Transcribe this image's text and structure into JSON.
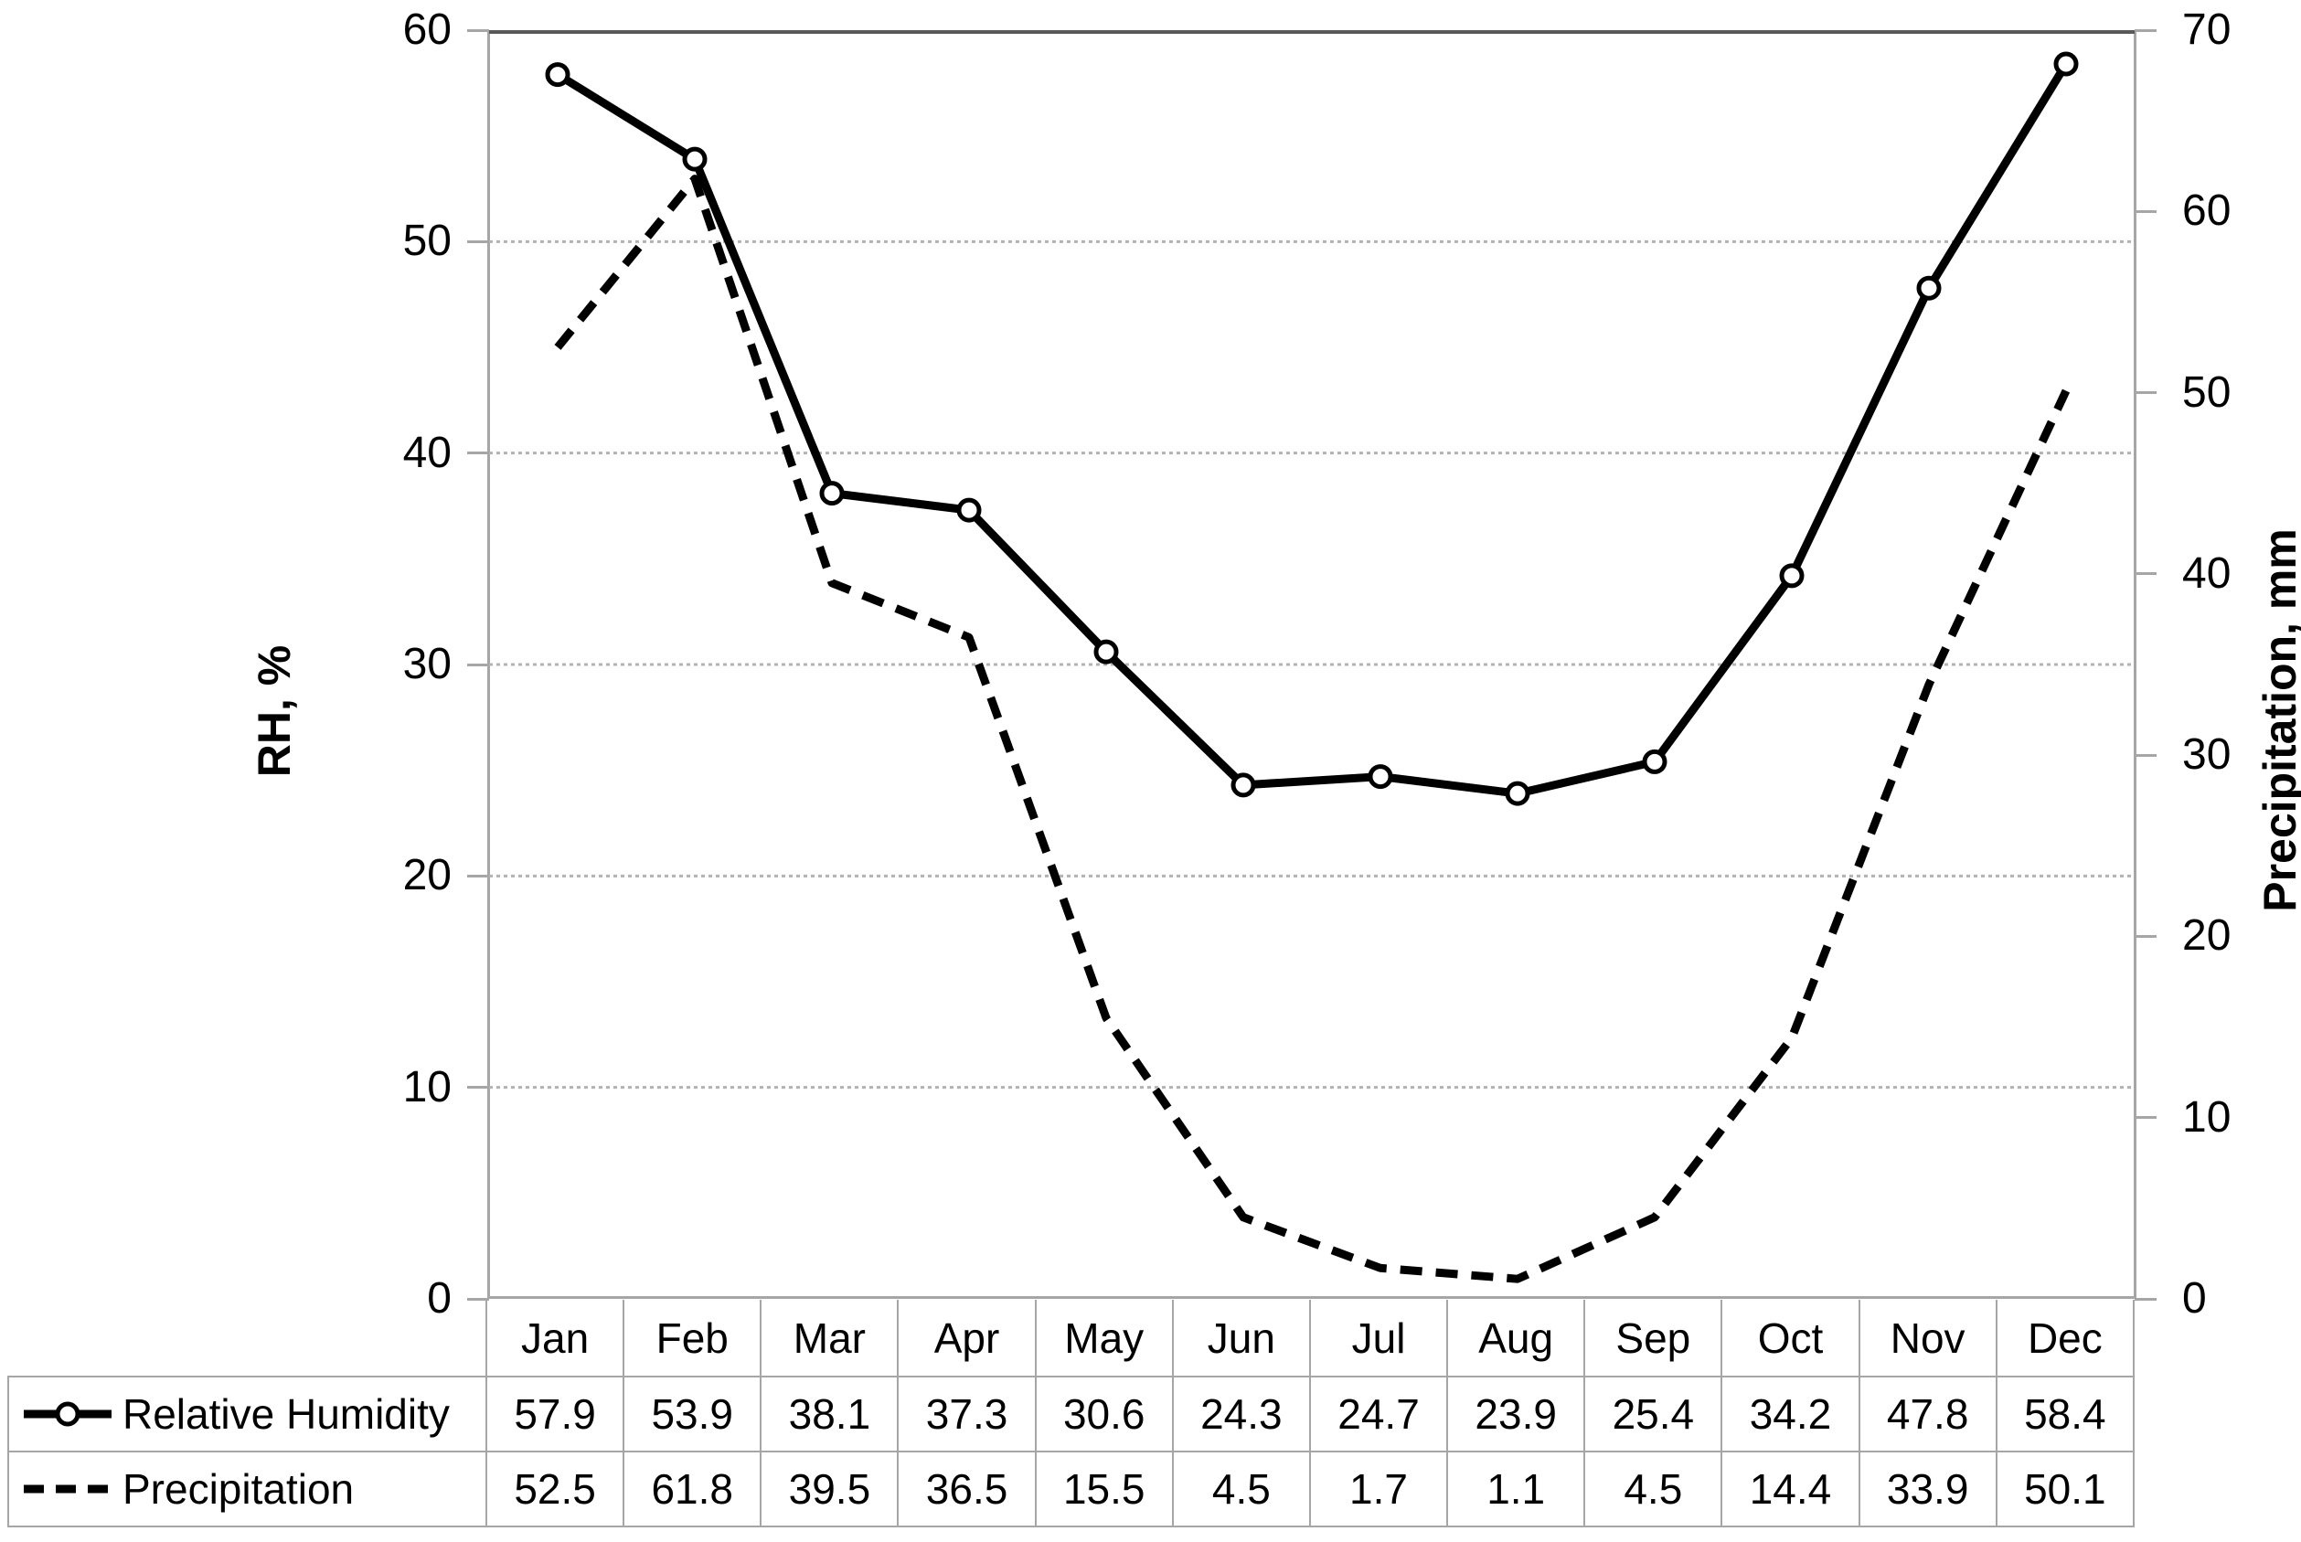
{
  "chart_data": {
    "type": "line",
    "categories": [
      "Jan",
      "Feb",
      "Mar",
      "Apr",
      "May",
      "Jun",
      "Jul",
      "Aug",
      "Sep",
      "Oct",
      "Nov",
      "Dec"
    ],
    "series": [
      {
        "name": "Relative Humidity",
        "axis": "left",
        "line_style": "solid",
        "marker": "circle",
        "values": [
          57.9,
          53.9,
          38.1,
          37.3,
          30.6,
          24.3,
          24.7,
          23.9,
          25.4,
          34.2,
          47.8,
          58.4
        ]
      },
      {
        "name": "Precipitation",
        "axis": "right",
        "line_style": "dashed",
        "marker": "none",
        "values": [
          52.5,
          61.8,
          39.5,
          36.5,
          15.5,
          4.5,
          1.7,
          1.1,
          4.5,
          14.4,
          33.9,
          50.1
        ]
      }
    ],
    "left_axis": {
      "label": "RH, %",
      "min": 0,
      "max": 60,
      "tick_step": 10,
      "ticks": [
        "0",
        "10",
        "20",
        "30",
        "40",
        "50",
        "60"
      ]
    },
    "right_axis": {
      "label": "Precipitation, mm",
      "min": 0,
      "max": 70,
      "tick_step": 10,
      "ticks": [
        "0",
        "10",
        "20",
        "30",
        "40",
        "50",
        "60",
        "70"
      ]
    },
    "grid": true,
    "legend_position": "table-left",
    "colors": {
      "series": "#000000",
      "gridline": "#b3b3b3",
      "top_gridline": "#595959",
      "axis": "#a6a6a6",
      "table_border": "#a6a6a6",
      "text": "#000000",
      "background": "#ffffff"
    }
  }
}
